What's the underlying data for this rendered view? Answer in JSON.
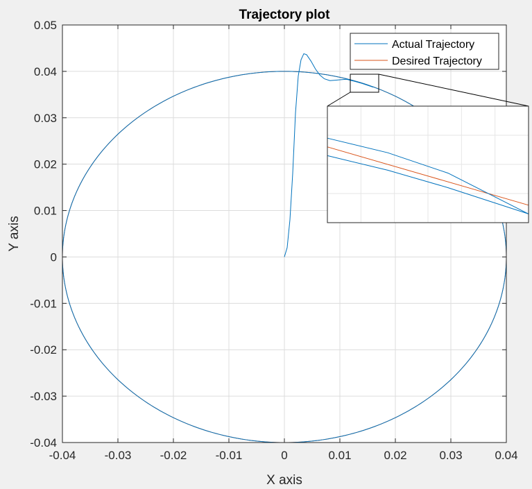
{
  "chart_data": {
    "type": "line",
    "title": "Trajectory plot",
    "xlabel": "X axis",
    "ylabel": "Y axis",
    "xlim": [
      -0.04,
      0.04
    ],
    "ylim": [
      -0.04,
      0.05
    ],
    "xticks": [
      -0.04,
      -0.03,
      -0.02,
      -0.01,
      0,
      0.01,
      0.02,
      0.03,
      0.04
    ],
    "xtick_labels": [
      "-0.04",
      "-0.03",
      "-0.02",
      "-0.01",
      "0",
      "0.01",
      "0.02",
      "0.03",
      "0.04"
    ],
    "yticks": [
      -0.04,
      -0.03,
      -0.02,
      -0.01,
      0,
      0.01,
      0.02,
      0.03,
      0.04,
      0.05
    ],
    "ytick_labels": [
      "-0.04",
      "-0.03",
      "-0.02",
      "-0.01",
      "0",
      "0.01",
      "0.02",
      "0.03",
      "0.04",
      "0.05"
    ],
    "grid": true,
    "legend_position": "top-right",
    "series": [
      {
        "name": "Actual Trajectory",
        "color": "#0072BD",
        "points": [
          [
            0,
            0
          ],
          [
            0.0005,
            0.002
          ],
          [
            0.001,
            0.008
          ],
          [
            0.0015,
            0.018
          ],
          [
            0.002,
            0.031
          ],
          [
            0.0025,
            0.039
          ],
          [
            0.003,
            0.0425
          ],
          [
            0.0035,
            0.0438
          ],
          [
            0.004,
            0.0436
          ],
          [
            0.0048,
            0.0422
          ],
          [
            0.0056,
            0.0405
          ],
          [
            0.0064,
            0.0392
          ],
          [
            0.0072,
            0.0384
          ],
          [
            0.0082,
            0.038
          ],
          [
            0.0092,
            0.0381
          ],
          [
            0.0102,
            0.0382
          ],
          [
            0.0112,
            0.0383
          ],
          [
            0.0125,
            0.0379
          ],
          [
            0.014,
            0.0374
          ],
          [
            0.016,
            0.0366
          ]
        ],
        "circle_radius": 0.04
      },
      {
        "name": "Desired Trajectory",
        "color": "#D95319",
        "circle_radius": 0.04,
        "center": [
          0,
          0
        ]
      }
    ],
    "inset": {
      "xlim": [
        0.012,
        0.017
      ],
      "ylim": [
        0.0355,
        0.0395
      ],
      "desired": [
        [
          0.012,
          0.0381
        ],
        [
          0.017,
          0.0361
        ]
      ],
      "actual_upper": [
        [
          0.012,
          0.0384
        ],
        [
          0.0135,
          0.0379
        ],
        [
          0.015,
          0.0372
        ],
        [
          0.017,
          0.0358
        ]
      ],
      "actual_lower": [
        [
          0.012,
          0.0378
        ],
        [
          0.0135,
          0.0373
        ],
        [
          0.015,
          0.0367
        ],
        [
          0.017,
          0.0358
        ]
      ]
    }
  }
}
